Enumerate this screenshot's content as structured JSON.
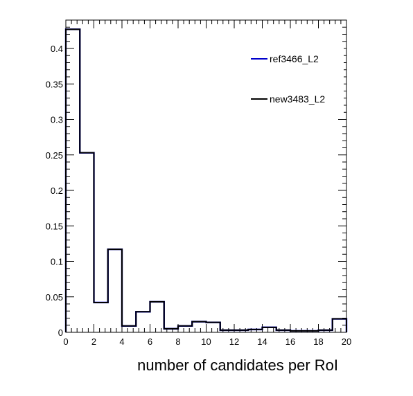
{
  "chart_data": {
    "type": "line",
    "style": "step-histogram",
    "title": "",
    "xlabel": "number of candidates per RoI",
    "ylabel": "",
    "xlim": [
      0,
      20
    ],
    "ylim": [
      0,
      0.44
    ],
    "x_ticks": [
      "0",
      "2",
      "4",
      "6",
      "8",
      "10",
      "12",
      "14",
      "16",
      "18",
      "20"
    ],
    "y_ticks": [
      "0",
      "0.05",
      "0.1",
      "0.15",
      "0.2",
      "0.25",
      "0.3",
      "0.35",
      "0.4"
    ],
    "x_bin_edges": [
      0,
      1,
      2,
      3,
      4,
      5,
      6,
      7,
      8,
      9,
      10,
      11,
      12,
      13,
      14,
      15,
      16,
      17,
      18,
      19,
      20
    ],
    "series": [
      {
        "name": "ref3466_L2",
        "color": "#0000cc",
        "values": [
          0.427,
          0.253,
          0.042,
          0.117,
          0.009,
          0.029,
          0.043,
          0.005,
          0.009,
          0.015,
          0.014,
          0.003,
          0.003,
          0.004,
          0.007,
          0.003,
          0.002,
          0.002,
          0.003,
          0.019
        ]
      },
      {
        "name": "new3483_L2",
        "color": "#000000",
        "values": [
          0.427,
          0.253,
          0.042,
          0.117,
          0.009,
          0.029,
          0.043,
          0.005,
          0.009,
          0.015,
          0.014,
          0.003,
          0.003,
          0.004,
          0.007,
          0.003,
          0.002,
          0.002,
          0.003,
          0.019
        ]
      }
    ],
    "legend_position": "top-right",
    "grid": false
  }
}
